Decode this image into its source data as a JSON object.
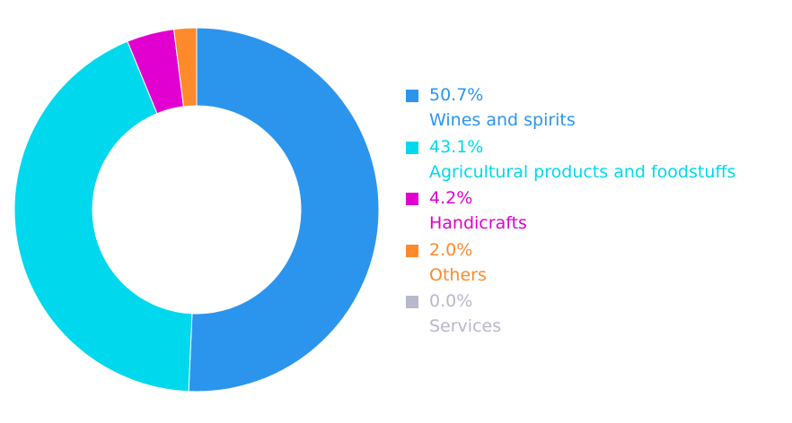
{
  "chart_data": {
    "type": "pie",
    "variant": "donut",
    "title": "",
    "legend_position": "right",
    "slices": [
      {
        "label": "Wines and spirits",
        "value": 50.7,
        "percent_text": "50.7%",
        "color": "#2b95ee"
      },
      {
        "label": "Agricultural products and foodstuffs",
        "value": 43.1,
        "percent_text": "43.1%",
        "color": "#00d8ed"
      },
      {
        "label": "Handicrafts",
        "value": 4.2,
        "percent_text": "4.2%",
        "color": "#e100d0"
      },
      {
        "label": "Others",
        "value": 2.0,
        "percent_text": "2.0%",
        "color": "#ff8a2c"
      },
      {
        "label": "Services",
        "value": 0.0,
        "percent_text": "0.0%",
        "color": "#b8b8cc"
      }
    ]
  }
}
